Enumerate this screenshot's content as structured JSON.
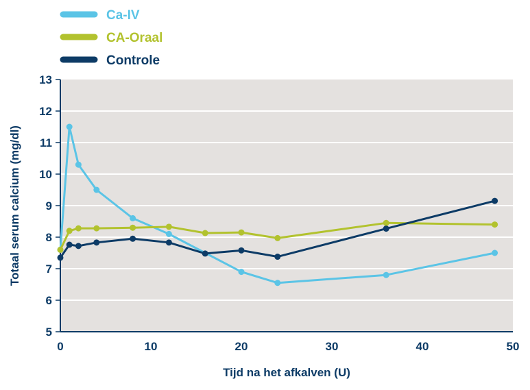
{
  "chart_data": {
    "type": "line",
    "title": "",
    "xlabel": "Tijd na het afkalven (U)",
    "ylabel": "Totaal serum calcium (mg/dl)",
    "xlim": [
      0,
      50
    ],
    "ylim": [
      5,
      13
    ],
    "xticks": [
      0,
      10,
      20,
      30,
      40,
      50
    ],
    "yticks": [
      5,
      6,
      7,
      8,
      9,
      10,
      11,
      12,
      13
    ],
    "grid": "horizontal",
    "legend_position": "top-left",
    "background": "#e4e1df",
    "axis_color": "#0d3b66",
    "x": [
      0,
      1,
      2,
      4,
      8,
      12,
      16,
      20,
      24,
      36,
      48
    ],
    "series": [
      {
        "name": "Ca-IV",
        "color": "#5bc4e6",
        "x": [
          0,
          1,
          2,
          4,
          8,
          12,
          20,
          24,
          36,
          48
        ],
        "values": [
          7.6,
          11.5,
          10.3,
          9.5,
          8.6,
          8.1,
          6.9,
          6.55,
          6.8,
          7.5
        ]
      },
      {
        "name": "CA-Oraal",
        "color": "#b2c22e",
        "x": [
          0,
          1,
          2,
          4,
          8,
          12,
          16,
          20,
          24,
          36,
          48
        ],
        "values": [
          7.6,
          8.2,
          8.28,
          8.28,
          8.3,
          8.33,
          8.13,
          8.15,
          7.97,
          8.45,
          8.4
        ]
      },
      {
        "name": "Controle",
        "color": "#0d3b66",
        "x": [
          0,
          1,
          2,
          4,
          8,
          12,
          16,
          20,
          24,
          36,
          48
        ],
        "values": [
          7.35,
          7.76,
          7.72,
          7.83,
          7.95,
          7.83,
          7.48,
          7.58,
          7.38,
          8.27,
          9.15
        ]
      }
    ]
  }
}
